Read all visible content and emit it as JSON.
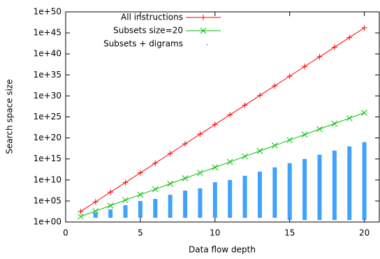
{
  "chart_data": {
    "type": "line",
    "y_label": "Search space size",
    "x_label": "Data flow depth",
    "log_y": true,
    "xlim": [
      0,
      21
    ],
    "xticks": [
      0,
      5,
      10,
      15,
      20
    ],
    "ylim": [
      1,
      1e+50
    ],
    "yticks": [
      {
        "value": 1,
        "label": "1e+00"
      },
      {
        "value": 100000.0,
        "label": "1e+05"
      },
      {
        "value": 10000000000.0,
        "label": "1e+10"
      },
      {
        "value": 1000000000000000.0,
        "label": "1e+15"
      },
      {
        "value": 1e+20,
        "label": "1e+20"
      },
      {
        "value": 1e+25,
        "label": "1e+25"
      },
      {
        "value": 1e+30,
        "label": "1e+30"
      },
      {
        "value": 1e+35,
        "label": "1e+35"
      },
      {
        "value": 1e+40,
        "label": "1e+40"
      },
      {
        "value": 1e+45,
        "label": "1e+45"
      },
      {
        "value": 1e+50,
        "label": "1e+50"
      }
    ],
    "x": [
      1,
      2,
      3,
      4,
      5,
      6,
      7,
      8,
      9,
      10,
      11,
      12,
      13,
      14,
      15,
      16,
      17,
      18,
      19,
      20
    ],
    "series": [
      {
        "name": "All instructions",
        "color": "#ff0000",
        "marker": "plus",
        "values": [
          316,
          63000,
          13000000.0,
          2500000000.0,
          500000000000.0,
          100000000000000.0,
          2e+16,
          4e+18,
          8e+20,
          1.6e+23,
          3.2e+25,
          6.3e+27,
          1.3e+30,
          2.5e+32,
          5e+34,
          1e+37,
          2e+39,
          4e+41,
          8e+43,
          1.6e+46
        ]
      },
      {
        "name": "Subsets size=20",
        "color": "#00c000",
        "marker": "cross",
        "values": [
          20,
          400,
          8000,
          160000,
          3200000.0,
          63000000.0,
          1300000000.0,
          25000000000.0,
          500000000000.0,
          10000000000000.0,
          200000000000000.0,
          4000000000000000.0,
          8e+16,
          1.6e+18,
          3.2e+19,
          6.3e+20,
          1.3e+22,
          2.5e+23,
          5e+24,
          1e+26
        ]
      },
      {
        "name": "Subsets + digrams",
        "color": "#1e90ff",
        "marker": "dots",
        "low": [
          null,
          10,
          10,
          10,
          10,
          10,
          10,
          10,
          10,
          10,
          10,
          10,
          10,
          10,
          3,
          3,
          3,
          3,
          3,
          3
        ],
        "high": [
          null,
          160,
          1000,
          10000,
          100000,
          300000,
          3000000.0,
          30000000.0,
          100000000.0,
          3000000000.0,
          10000000000.0,
          100000000000.0,
          1000000000000.0,
          10000000000000.0,
          100000000000000.0,
          1000000000000000.0,
          1e+16,
          1e+17,
          1e+18,
          1e+19
        ]
      }
    ]
  }
}
